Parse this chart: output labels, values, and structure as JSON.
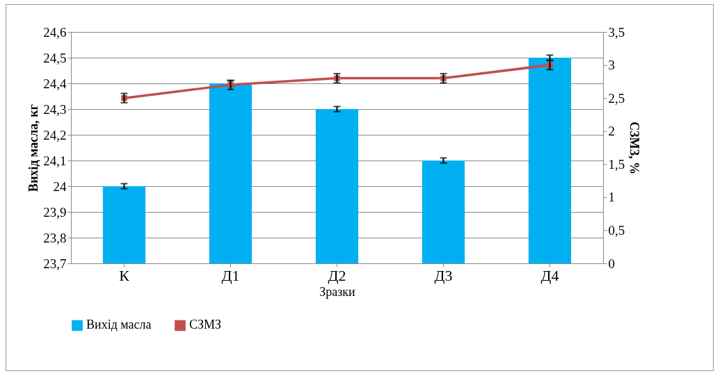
{
  "chart_data": {
    "type": "bar",
    "categories": [
      "К",
      "Д1",
      "Д2",
      "Д3",
      "Д4"
    ],
    "xlabel": "Зразки",
    "ylabel": "Вихід масла, кг",
    "y2label": "СЗМЗ, %",
    "ylim": [
      23.7,
      24.6
    ],
    "yticks": [
      {
        "value": 23.7,
        "label": "23,7"
      },
      {
        "value": 23.8,
        "label": "23,8"
      },
      {
        "value": 23.9,
        "label": "23,9"
      },
      24,
      {
        "value": 24.1,
        "label": "24,1"
      },
      {
        "value": 24.2,
        "label": "24,2"
      },
      {
        "value": 24.3,
        "label": "24,3"
      },
      {
        "value": 24.4,
        "label": "24,4"
      },
      {
        "value": 24.5,
        "label": "24,5"
      },
      {
        "value": 24.6,
        "label": "24,6"
      }
    ],
    "y2lim": [
      0,
      3.5
    ],
    "y2ticks": [
      0,
      {
        "value": 0.5,
        "label": "0,5"
      },
      1,
      {
        "value": 1.5,
        "label": "1,5"
      },
      2,
      {
        "value": 2.5,
        "label": "2,5"
      },
      3,
      {
        "value": 3.5,
        "label": "3,5"
      }
    ],
    "grid": "y",
    "legend": "bottom",
    "marker": "square",
    "series": [
      {
        "name": "Вихід масла",
        "color": "#00b0f0",
        "values": [
          24.0,
          24.4,
          24.3,
          24.1,
          24.5
        ],
        "errors": [
          0.01,
          0.01,
          0.01,
          0.01,
          0.01
        ]
      },
      {
        "name": "СЗМЗ",
        "type": "line",
        "axis": "y2",
        "color": "#c0504d",
        "values": [
          2.5,
          2.7,
          2.8,
          2.8,
          3.0
        ],
        "errors": [
          0.07,
          0.07,
          0.07,
          0.07,
          0.07
        ]
      }
    ]
  }
}
